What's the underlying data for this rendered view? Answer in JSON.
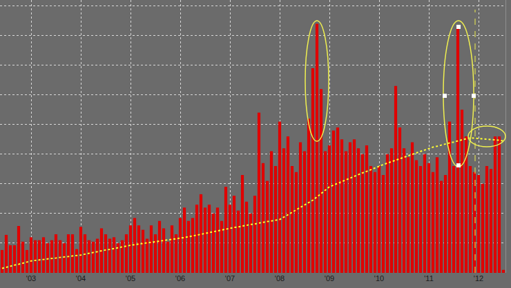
{
  "chart_data": {
    "type": "bar",
    "categories": [
      null,
      null,
      null,
      null,
      null,
      null,
      null,
      "'03",
      null,
      null,
      null,
      null,
      null,
      null,
      null,
      null,
      null,
      null,
      null,
      "'04",
      null,
      null,
      null,
      null,
      null,
      null,
      null,
      null,
      null,
      null,
      null,
      "'05",
      null,
      null,
      null,
      null,
      null,
      null,
      null,
      null,
      null,
      null,
      null,
      "'06",
      null,
      null,
      null,
      null,
      null,
      null,
      null,
      null,
      null,
      null,
      null,
      "'07",
      null,
      null,
      null,
      null,
      null,
      null,
      null,
      null,
      null,
      null,
      null,
      "'08",
      null,
      null,
      null,
      null,
      null,
      null,
      null,
      null,
      null,
      null,
      null,
      "'09",
      null,
      null,
      null,
      null,
      null,
      null,
      null,
      null,
      null,
      null,
      null,
      "'10",
      null,
      null,
      null,
      null,
      null,
      null,
      null,
      null,
      null,
      null,
      null,
      "'11",
      null,
      null,
      null,
      null,
      null,
      null,
      null,
      null,
      null,
      null,
      null,
      "'12",
      null,
      null,
      null,
      null,
      null,
      null
    ],
    "series": [
      {
        "type": "bar",
        "color": "#e00000",
        "values": [
          0.77,
          1.28,
          0.93,
          0.93,
          1.58,
          1.05,
          0.77,
          1.2,
          1.1,
          1.1,
          1.2,
          1.0,
          1.1,
          1.3,
          1.1,
          1.0,
          1.3,
          1.3,
          0.8,
          1.55,
          1.3,
          1.1,
          1.05,
          1.15,
          1.5,
          1.3,
          1.15,
          1.2,
          1.0,
          1.1,
          1.3,
          1.6,
          1.85,
          1.6,
          1.45,
          1.15,
          1.6,
          1.3,
          1.75,
          1.5,
          1.05,
          1.6,
          1.3,
          1.85,
          2.2,
          1.75,
          1.85,
          2.3,
          2.65,
          2.2,
          2.3,
          2.0,
          2.2,
          1.75,
          2.9,
          2.3,
          2.6,
          2.1,
          3.3,
          2.4,
          2.0,
          2.6,
          5.4,
          3.7,
          3.1,
          4.1,
          3.6,
          5.1,
          4.2,
          4.6,
          3.6,
          3.4,
          4.4,
          4.1,
          5.2,
          6.9,
          8.4,
          6.2,
          4.1,
          4.3,
          4.8,
          4.9,
          4.5,
          4.1,
          4.4,
          4.5,
          4.2,
          4.0,
          4.3,
          3.6,
          3.4,
          3.6,
          3.3,
          4.0,
          4.2,
          6.3,
          4.9,
          4.2,
          3.9,
          4.4,
          3.8,
          3.6,
          4.0,
          3.7,
          3.4,
          3.9,
          3.1,
          3.3,
          5.1,
          3.6,
          8.3,
          5.5,
          4.6,
          3.6,
          3.4,
          3.3,
          3.0,
          3.6,
          3.5,
          4.6,
          4.6,
          0.1
        ]
      },
      {
        "type": "line",
        "color": "#ffff33",
        "line_style": "dotted",
        "values": [
          0.15,
          0.19,
          0.22,
          0.26,
          0.29,
          0.33,
          0.36,
          0.4,
          0.42,
          0.43,
          0.45,
          0.47,
          0.48,
          0.5,
          0.52,
          0.53,
          0.55,
          0.57,
          0.58,
          0.6,
          0.63,
          0.66,
          0.68,
          0.71,
          0.74,
          0.77,
          0.79,
          0.82,
          0.85,
          0.88,
          0.9,
          0.93,
          0.95,
          0.97,
          0.99,
          1.01,
          1.03,
          1.05,
          1.06,
          1.08,
          1.1,
          1.12,
          1.14,
          1.16,
          1.19,
          1.22,
          1.24,
          1.27,
          1.3,
          1.33,
          1.36,
          1.39,
          1.41,
          1.44,
          1.47,
          1.5,
          1.53,
          1.55,
          1.58,
          1.6,
          1.63,
          1.65,
          1.68,
          1.7,
          1.73,
          1.75,
          1.78,
          1.8,
          1.88,
          1.96,
          2.04,
          2.12,
          2.21,
          2.29,
          2.37,
          2.45,
          2.56,
          2.68,
          2.79,
          2.9,
          2.96,
          3.02,
          3.08,
          3.13,
          3.19,
          3.25,
          3.31,
          3.37,
          3.42,
          3.48,
          3.54,
          3.6,
          3.65,
          3.7,
          3.75,
          3.8,
          3.85,
          3.9,
          3.95,
          4.0,
          4.05,
          4.1,
          4.15,
          4.2,
          4.24,
          4.27,
          4.31,
          4.34,
          4.38,
          4.41,
          4.45,
          4.48,
          4.52,
          4.55,
          4.54,
          4.53,
          4.52,
          4.5,
          4.49,
          4.48,
          4.47,
          4.45
        ]
      }
    ],
    "ylim": [
      0,
      9.2
    ],
    "yticks": [
      0,
      1,
      2,
      3,
      4,
      5,
      6,
      7,
      8,
      9
    ],
    "grid": true,
    "tick_labels": "x"
  }
}
